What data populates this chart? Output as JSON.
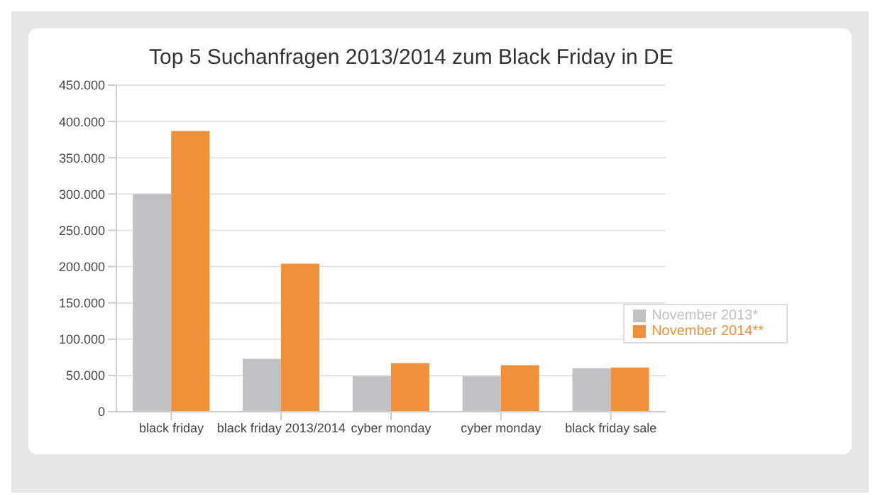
{
  "chart_data": {
    "type": "bar",
    "title": "Top 5 Suchanfragen 2013/2014 zum Black Friday in DE",
    "categories": [
      "black friday",
      "black friday 2013/2014",
      "cyber monday",
      "cyber monday",
      "black friday sale"
    ],
    "series": [
      {
        "name": "November 2013*",
        "color": "#c1c1c3",
        "values": [
          300000,
          73000,
          49000,
          49000,
          60000
        ]
      },
      {
        "name": "November 2014**",
        "color": "#f0913a",
        "values": [
          387000,
          204000,
          67000,
          64000,
          61000
        ]
      }
    ],
    "ylim": [
      0,
      450000
    ],
    "yticks": [
      {
        "value": 0,
        "label": "0"
      },
      {
        "value": 50000,
        "label": "50.000"
      },
      {
        "value": 100000,
        "label": "100.000"
      },
      {
        "value": 150000,
        "label": "150.000"
      },
      {
        "value": 200000,
        "label": "200.000"
      },
      {
        "value": 250000,
        "label": "250.000"
      },
      {
        "value": 300000,
        "label": "300.000"
      },
      {
        "value": 350000,
        "label": "350.000"
      },
      {
        "value": 400000,
        "label": "400.000"
      },
      {
        "value": 450000,
        "label": "450.000"
      }
    ],
    "grid": "y",
    "legend": "right"
  }
}
